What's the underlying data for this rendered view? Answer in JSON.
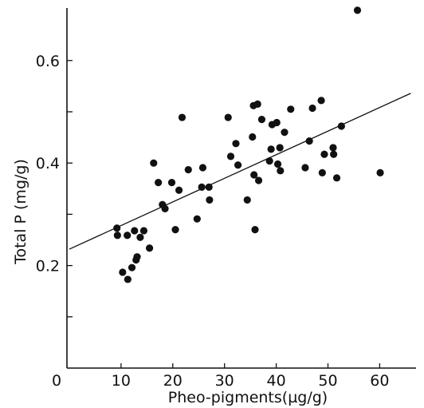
{
  "chart_data": {
    "type": "scatter",
    "xlabel": "Pheo-pigments(µg/g)",
    "ylabel": "Total P (mg/g)",
    "xlim": [
      0,
      66
    ],
    "ylim": [
      0.0,
      0.7
    ],
    "x_ticks": [
      {
        "value": 0,
        "label": "0"
      },
      {
        "value": 10,
        "label": "10"
      },
      {
        "value": 20,
        "label": "20"
      },
      {
        "value": 30,
        "label": "30"
      },
      {
        "value": 40,
        "label": "40"
      },
      {
        "value": 50,
        "label": "50"
      },
      {
        "value": 60,
        "label": "60"
      }
    ],
    "y_ticks": [
      {
        "value": 0.2,
        "label": "0.2"
      },
      {
        "value": 0.4,
        "label": "0.4"
      },
      {
        "value": 0.6,
        "label": "0.6"
      }
    ],
    "y_minor_ticks": [
      0.1,
      0.3,
      0.5
    ],
    "grid": false,
    "series": [
      {
        "marker": "filled-circle",
        "color": "#111111",
        "points": [
          [
            9.2,
            0.273
          ],
          [
            9.3,
            0.259
          ],
          [
            10.3,
            0.187
          ],
          [
            11.2,
            0.259
          ],
          [
            11.3,
            0.173
          ],
          [
            12.1,
            0.196
          ],
          [
            12.6,
            0.268
          ],
          [
            12.9,
            0.211
          ],
          [
            13.1,
            0.217
          ],
          [
            13.7,
            0.255
          ],
          [
            14.4,
            0.268
          ],
          [
            15.5,
            0.234
          ],
          [
            16.3,
            0.4
          ],
          [
            17.2,
            0.362
          ],
          [
            18.0,
            0.319
          ],
          [
            18.5,
            0.311
          ],
          [
            19.8,
            0.362
          ],
          [
            20.5,
            0.27
          ],
          [
            21.2,
            0.347
          ],
          [
            21.8,
            0.489
          ],
          [
            23.0,
            0.387
          ],
          [
            24.7,
            0.291
          ],
          [
            25.6,
            0.353
          ],
          [
            25.8,
            0.391
          ],
          [
            27.0,
            0.353
          ],
          [
            27.1,
            0.328
          ],
          [
            30.7,
            0.489
          ],
          [
            31.2,
            0.413
          ],
          [
            32.2,
            0.438
          ],
          [
            32.6,
            0.396
          ],
          [
            34.4,
            0.328
          ],
          [
            35.4,
            0.451
          ],
          [
            35.6,
            0.512
          ],
          [
            35.7,
            0.377
          ],
          [
            35.9,
            0.27
          ],
          [
            36.4,
            0.515
          ],
          [
            36.6,
            0.366
          ],
          [
            37.2,
            0.485
          ],
          [
            38.7,
            0.404
          ],
          [
            39.0,
            0.427
          ],
          [
            39.2,
            0.475
          ],
          [
            40.1,
            0.479
          ],
          [
            40.3,
            0.398
          ],
          [
            40.7,
            0.43
          ],
          [
            40.8,
            0.385
          ],
          [
            41.6,
            0.46
          ],
          [
            42.8,
            0.505
          ],
          [
            45.6,
            0.391
          ],
          [
            46.4,
            0.443
          ],
          [
            47.0,
            0.507
          ],
          [
            48.7,
            0.522
          ],
          [
            48.9,
            0.381
          ],
          [
            49.3,
            0.417
          ],
          [
            51.0,
            0.43
          ],
          [
            51.1,
            0.417
          ],
          [
            51.7,
            0.371
          ],
          [
            52.6,
            0.472
          ],
          [
            55.7,
            0.698
          ],
          [
            60.1,
            0.381
          ]
        ]
      }
    ],
    "regression_line": {
      "x": [
        0,
        66
      ],
      "y": [
        0.232,
        0.536
      ]
    }
  }
}
